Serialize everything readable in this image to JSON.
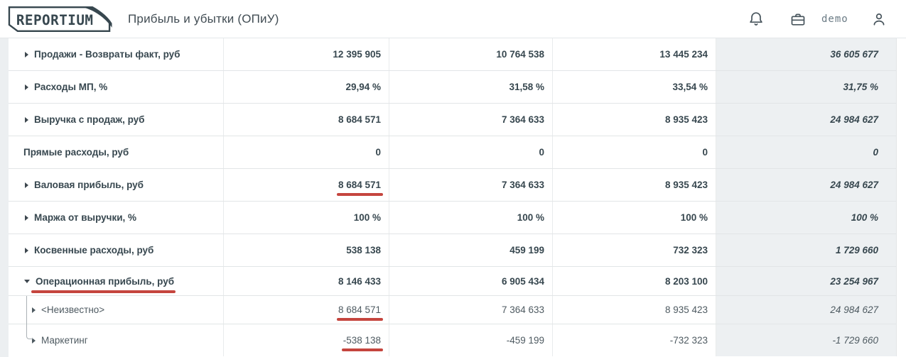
{
  "header": {
    "logo_text": "REPORTIUM",
    "title": "Прибыль и убытки (ОПиУ)",
    "user": "demo"
  },
  "colors": {
    "underline_red": "#c5453e",
    "totals_column_bg": "#edf0f2",
    "text_dark": "#37474f"
  },
  "table": {
    "rows": [
      {
        "label": "Продажи - Возвраты факт, руб",
        "arrow": "right",
        "level": 0,
        "values": [
          "12 395 905",
          "10 764 538",
          "13 445 234"
        ],
        "total": "36 605 677"
      },
      {
        "label": "Расходы МП, %",
        "arrow": "right",
        "level": 0,
        "values": [
          "29,94 %",
          "31,58 %",
          "33,54 %"
        ],
        "total": "31,75 %"
      },
      {
        "label": "Выручка с продаж, руб",
        "arrow": "right",
        "level": 0,
        "values": [
          "8 684 571",
          "7 364 633",
          "8 935 423"
        ],
        "total": "24 984 627"
      },
      {
        "label": "Прямые расходы, руб",
        "arrow": null,
        "level": 0,
        "values": [
          "0",
          "0",
          "0"
        ],
        "total": "0"
      },
      {
        "label": "Валовая прибыль, руб",
        "arrow": "right",
        "level": 0,
        "underline_value": 0,
        "values": [
          "8 684 571",
          "7 364 633",
          "8 935 423"
        ],
        "total": "24 984 627"
      },
      {
        "label": "Маржа от выручки, %",
        "arrow": "right",
        "level": 0,
        "values": [
          "100 %",
          "100 %",
          "100 %"
        ],
        "total": "100 %"
      },
      {
        "label": "Косвенные расходы, руб",
        "arrow": "right",
        "level": 0,
        "values": [
          "538 138",
          "459 199",
          "732 323"
        ],
        "total": "1 729 660"
      },
      {
        "label": "Операционная прибыль, руб",
        "arrow": "down",
        "level": 0,
        "underline_label": true,
        "values": [
          "8 146 433",
          "6 905 434",
          "8 203 100"
        ],
        "total": "23 254 967"
      },
      {
        "label": "<Неизвестно>",
        "arrow": "right",
        "level": 1,
        "tree": "pass",
        "underline_value": 0,
        "values": [
          "8 684 571",
          "7 364 633",
          "8 935 423"
        ],
        "total": "24 984 627"
      },
      {
        "label": "Маркетинг",
        "arrow": "right",
        "level": 1,
        "tree": "end",
        "underline_value": 0,
        "values": [
          "-538 138",
          "-459 199",
          "-732 323"
        ],
        "total": "-1 729 660"
      }
    ]
  }
}
